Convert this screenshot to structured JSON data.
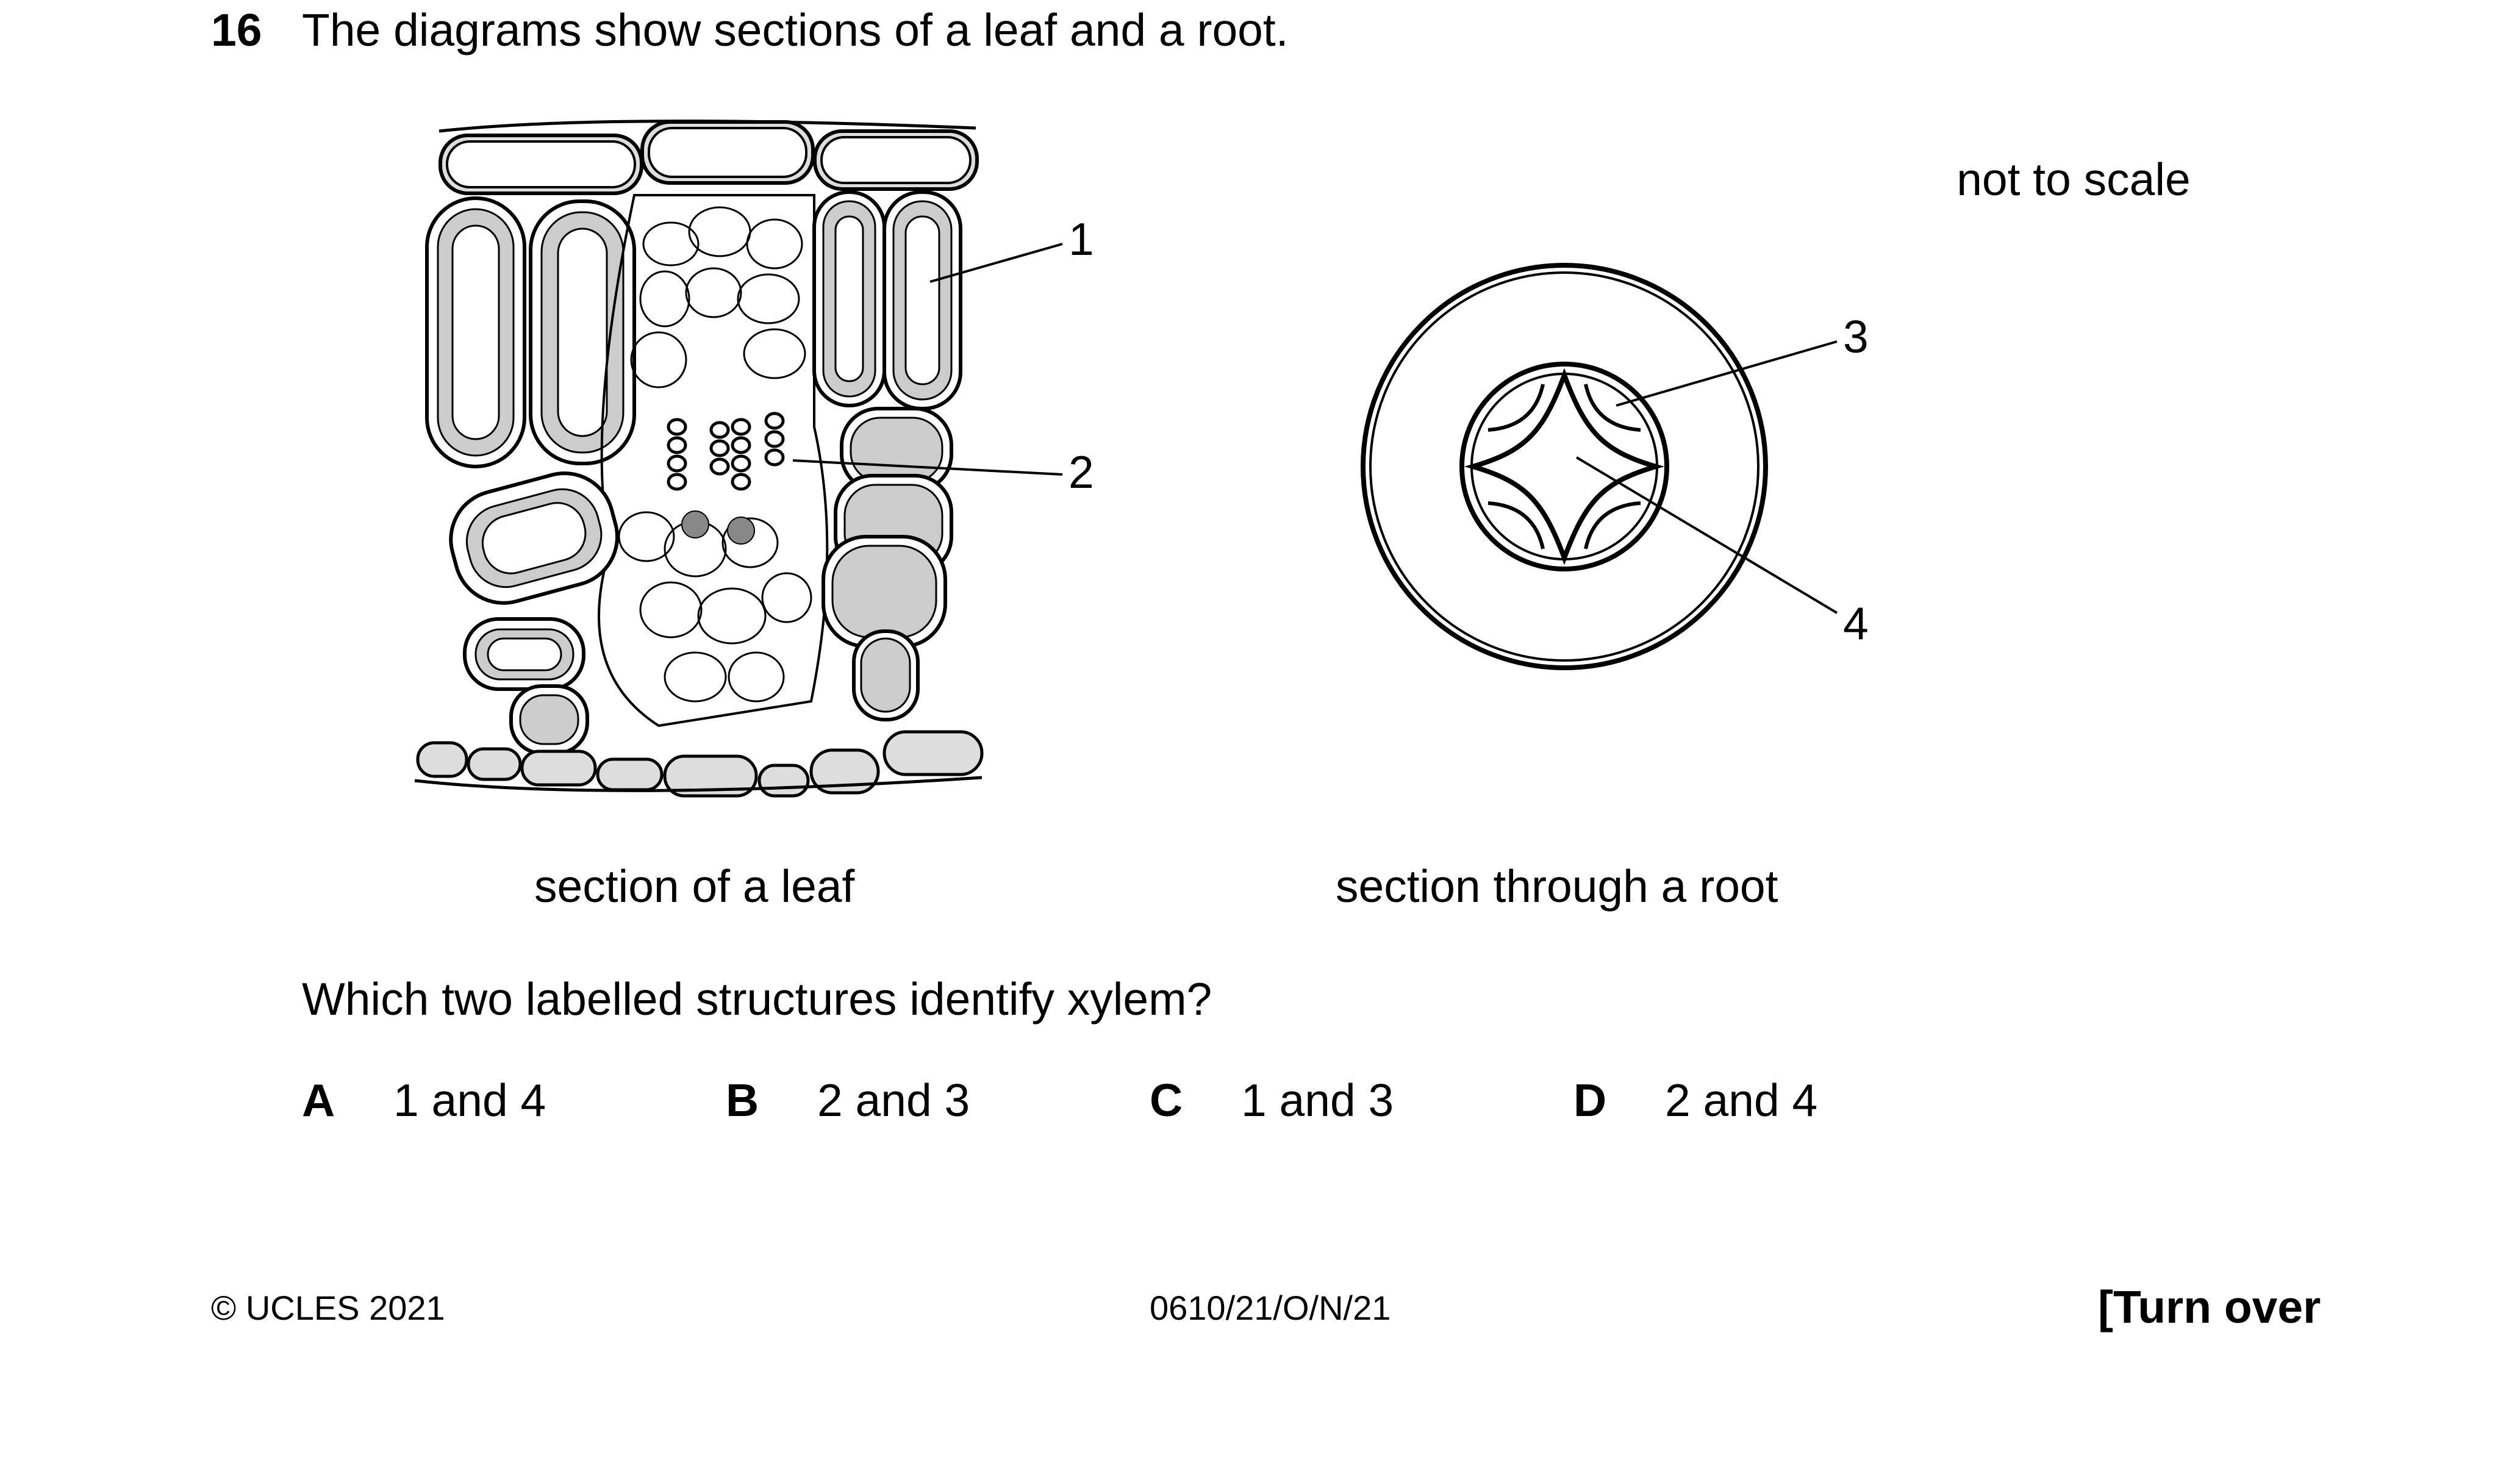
{
  "question": {
    "number": "16",
    "text": "The diagrams show sections of a leaf and a root."
  },
  "scale_note": "not to scale",
  "figure": {
    "labels": [
      "1",
      "2",
      "3",
      "4"
    ],
    "caption_leaf": "section of a leaf",
    "caption_root": "section through a root"
  },
  "prompt": "Which two labelled structures identify xylem?",
  "options": [
    {
      "letter": "A",
      "text": "1 and 4"
    },
    {
      "letter": "B",
      "text": "2 and 3"
    },
    {
      "letter": "C",
      "text": "1 and 3"
    },
    {
      "letter": "D",
      "text": "2 and 4"
    }
  ],
  "footer": {
    "copyright": "© UCLES 2021",
    "code": "0610/21/O/N/21",
    "turn_over": "[Turn over"
  }
}
